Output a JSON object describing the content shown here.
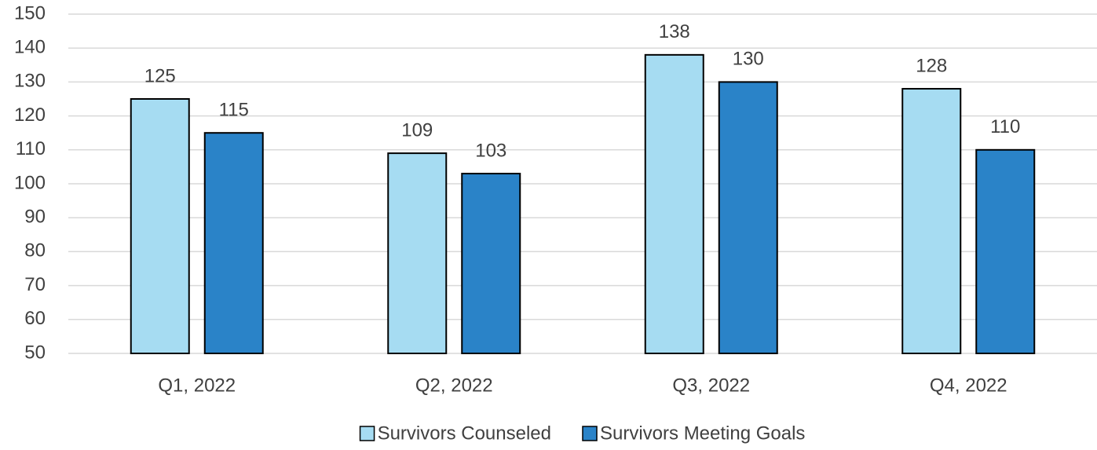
{
  "chart_data": {
    "type": "bar",
    "categories": [
      "Q1, 2022",
      "Q2, 2022",
      "Q3, 2022",
      "Q4, 2022"
    ],
    "series": [
      {
        "name": "Survivors Counseled",
        "color": "#a6dcf2",
        "values": [
          125,
          109,
          138,
          128
        ]
      },
      {
        "name": "Survivors Meeting Goals",
        "color": "#2a83c8",
        "values": [
          115,
          103,
          130,
          110
        ]
      }
    ],
    "ylim": [
      50,
      150
    ],
    "yticks": [
      50,
      60,
      70,
      80,
      90,
      100,
      110,
      120,
      130,
      140,
      150
    ],
    "grid": true,
    "legend": "bottom"
  }
}
